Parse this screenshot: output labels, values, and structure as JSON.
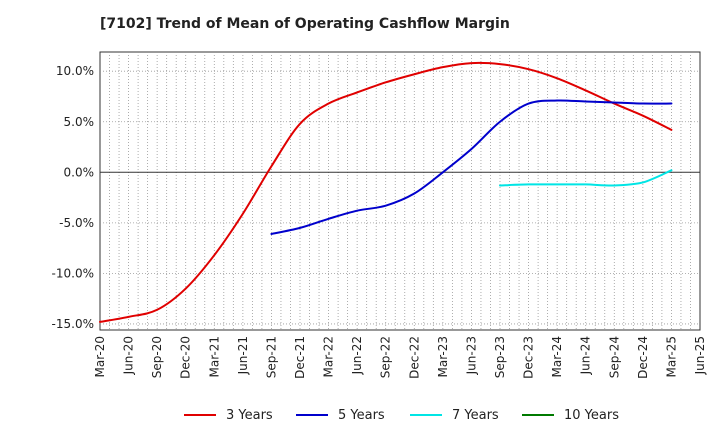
{
  "chart_data": {
    "type": "line",
    "title": "[7102]  Trend of Mean of Operating Cashflow Margin",
    "xlabel": "",
    "ylabel": "",
    "x": [
      "Mar-20",
      "Jun-20",
      "Sep-20",
      "Dec-20",
      "Mar-21",
      "Jun-21",
      "Sep-21",
      "Dec-21",
      "Mar-22",
      "Jun-22",
      "Sep-22",
      "Dec-22",
      "Mar-23",
      "Jun-23",
      "Sep-23",
      "Dec-23",
      "Mar-24",
      "Jun-24",
      "Sep-24",
      "Dec-24",
      "Mar-25",
      "Jun-25"
    ],
    "x_tick_labels": [
      "Mar-20",
      "Jun-20",
      "Sep-20",
      "Dec-20",
      "Mar-21",
      "Jun-21",
      "Sep-21",
      "Dec-21",
      "Mar-22",
      "Jun-22",
      "Sep-22",
      "Dec-22",
      "Mar-23",
      "Jun-23",
      "Sep-23",
      "Dec-23",
      "Mar-24",
      "Jun-24",
      "Sep-24",
      "Dec-24",
      "Mar-25",
      "Jun-25"
    ],
    "y_ticks": [
      -15,
      -10,
      -5,
      0,
      5,
      10
    ],
    "y_tick_labels": [
      "-15.0%",
      "-10.0%",
      "-5.0%",
      "0.0%",
      "5.0%",
      "10.0%"
    ],
    "ylim": [
      -15.6,
      11.9
    ],
    "y_unit": "%",
    "grid": true,
    "legend_position": "bottom",
    "series": [
      {
        "name": "3 Years",
        "color": "#e00000",
        "values": [
          -14.8,
          -14.3,
          -13.6,
          -11.5,
          -8.2,
          -4.1,
          0.6,
          4.8,
          6.8,
          7.9,
          8.9,
          9.7,
          10.4,
          10.8,
          10.7,
          10.2,
          9.3,
          8.1,
          6.8,
          5.6,
          4.2,
          null
        ]
      },
      {
        "name": "5 Years",
        "color": "#0000cc",
        "values": [
          null,
          null,
          null,
          null,
          null,
          null,
          -6.1,
          -5.5,
          -4.6,
          -3.8,
          -3.3,
          -2.1,
          0.0,
          2.3,
          5.0,
          6.8,
          7.1,
          7.0,
          6.9,
          6.8,
          6.8,
          null
        ]
      },
      {
        "name": "7 Years",
        "color": "#00e5e5",
        "values": [
          null,
          null,
          null,
          null,
          null,
          null,
          null,
          null,
          null,
          null,
          null,
          null,
          null,
          null,
          -1.3,
          -1.2,
          -1.2,
          -1.2,
          -1.3,
          -1.0,
          0.2,
          null
        ]
      },
      {
        "name": "10 Years",
        "color": "#007a00",
        "values": [
          null,
          null,
          null,
          null,
          null,
          null,
          null,
          null,
          null,
          null,
          null,
          null,
          null,
          null,
          null,
          null,
          null,
          null,
          null,
          null,
          null,
          null
        ]
      }
    ]
  }
}
